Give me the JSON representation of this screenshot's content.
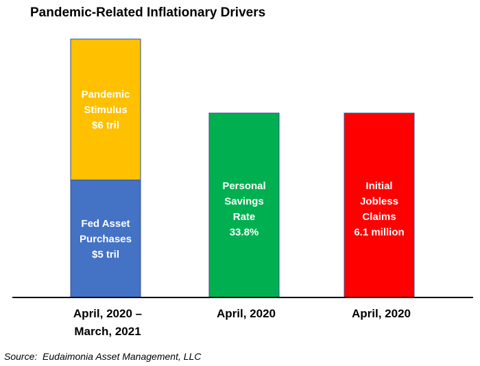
{
  "chart_data": {
    "type": "bar",
    "title": "Pandemic-Related Inflationary Drivers",
    "source": "Source:  Eudaimonia Asset Management, LLC",
    "bars": [
      {
        "category": [
          "April, 2020 –",
          "March, 2021"
        ],
        "segments": [
          {
            "label": [
              "Fed Asset",
              "Purchases",
              "$5 tril"
            ],
            "value": 5,
            "unit": "tril",
            "color": "#4472C4"
          },
          {
            "label": [
              "Pandemic",
              "Stimulus",
              "$6 tril"
            ],
            "value": 6,
            "unit": "tril",
            "color": "#FFC000"
          }
        ]
      },
      {
        "category": [
          "April, 2020"
        ],
        "segments": [
          {
            "label": [
              "Personal",
              "Savings",
              "Rate",
              "33.8%"
            ],
            "value": 33.8,
            "unit": "%",
            "color": "#00B050"
          }
        ]
      },
      {
        "category": [
          "April, 2020"
        ],
        "segments": [
          {
            "label": [
              "Initial",
              "Jobless",
              "Claims",
              "6.1 million"
            ],
            "value": 6.1,
            "unit": "million",
            "color": "#FF0000"
          }
        ]
      }
    ],
    "grid": false,
    "legend": "none"
  }
}
